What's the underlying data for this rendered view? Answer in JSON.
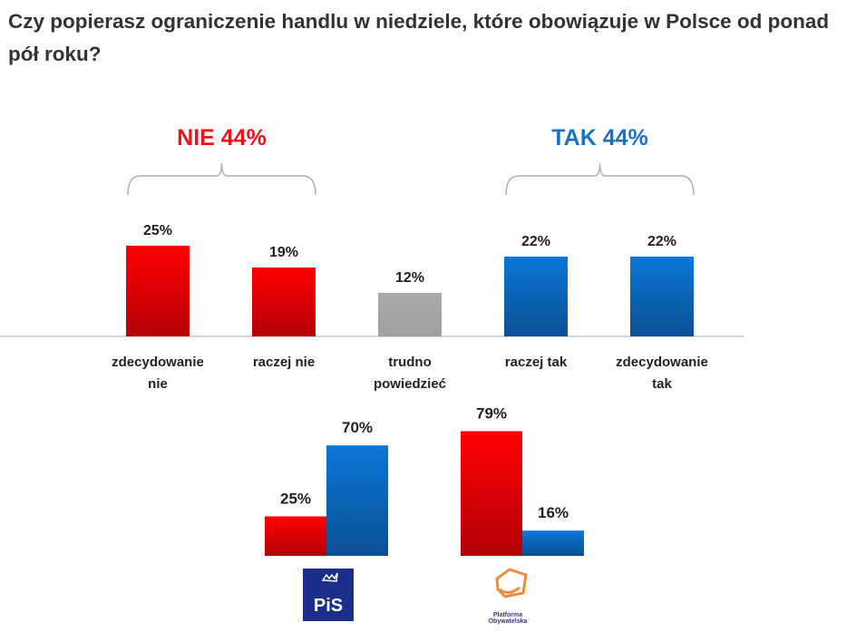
{
  "chart_data": [
    {
      "type": "bar",
      "title": "Czy popierasz ograniczenie handlu w niedziele, które obowiązuje w Polsce od ponad pół roku?",
      "categories": [
        [
          "zdecydowanie",
          "nie"
        ],
        [
          "raczej nie"
        ],
        [
          "trudno",
          "powiedzieć"
        ],
        [
          "raczej tak"
        ],
        [
          "zdecydowanie",
          "tak"
        ]
      ],
      "values": [
        25,
        19,
        12,
        22,
        22
      ],
      "value_labels": [
        "25%",
        "19%",
        "12%",
        "22%",
        "22%"
      ],
      "colors": [
        "#e8000b",
        "#e8000b",
        "#a6a6a6",
        "#0b6fc9",
        "#0b6fc9"
      ],
      "groups": [
        {
          "label": "NIE 44%",
          "color": "#e8141c",
          "categories": [
            0,
            1
          ]
        },
        {
          "label": "TAK 44%",
          "color": "#1a72c4",
          "categories": [
            3,
            4
          ]
        }
      ],
      "ylim": [
        0,
        25
      ],
      "grid": false
    },
    {
      "type": "bar",
      "categories": [
        "PiS",
        "Platforma Obywatelska"
      ],
      "series": [
        {
          "values": [
            25,
            79
          ],
          "labels": [
            "25%",
            "79%"
          ],
          "color": "#e8000b"
        },
        {
          "values": [
            70,
            16
          ],
          "labels": [
            "70%",
            "16%"
          ],
          "color": "#0b6fc9"
        }
      ],
      "ylim": [
        0,
        79
      ],
      "grid": false
    }
  ],
  "logos": {
    "pis": "PiS",
    "po": "Platforma Obywatelska"
  }
}
